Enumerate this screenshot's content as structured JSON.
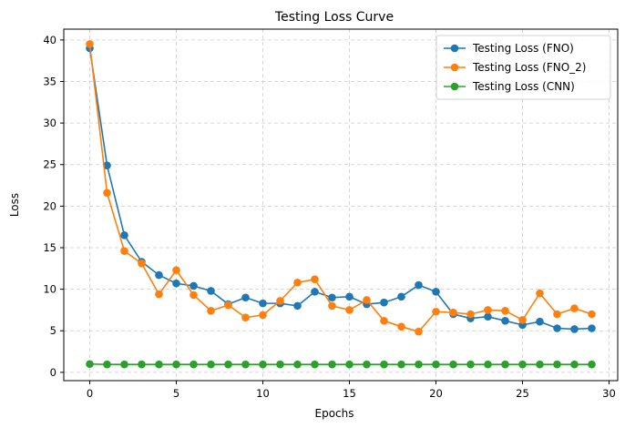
{
  "chart_data": {
    "type": "line",
    "title": "Testing Loss Curve",
    "xlabel": "Epochs",
    "ylabel": "Loss",
    "xlim": [
      -1.5,
      30.5
    ],
    "ylim": [
      -1.0,
      41.3
    ],
    "xticks": [
      0,
      5,
      10,
      15,
      20,
      25,
      30
    ],
    "yticks": [
      0,
      5,
      10,
      15,
      20,
      25,
      30,
      35,
      40
    ],
    "grid": true,
    "grid_style": "dashed",
    "legend_position": "top-right",
    "x": [
      0,
      1,
      2,
      3,
      4,
      5,
      6,
      7,
      8,
      9,
      10,
      11,
      12,
      13,
      14,
      15,
      16,
      17,
      18,
      19,
      20,
      21,
      22,
      23,
      24,
      25,
      26,
      27,
      28,
      29
    ],
    "series": [
      {
        "name": "Testing Loss (FNO)",
        "color": "#1f77b4",
        "values": [
          39.0,
          24.9,
          16.5,
          13.3,
          11.7,
          10.7,
          10.4,
          9.8,
          8.2,
          9.0,
          8.3,
          8.3,
          8.0,
          9.7,
          9.0,
          9.1,
          8.2,
          8.4,
          9.1,
          10.5,
          9.7,
          7.0,
          6.5,
          6.7,
          6.2,
          5.7,
          6.1,
          5.3,
          5.2,
          5.3
        ]
      },
      {
        "name": "Testing Loss (FNO_2)",
        "color": "#ff7f0e",
        "values": [
          39.5,
          21.6,
          14.6,
          13.1,
          9.4,
          12.3,
          9.3,
          7.4,
          8.1,
          6.6,
          6.9,
          8.6,
          10.8,
          11.2,
          8.0,
          7.5,
          8.7,
          6.2,
          5.5,
          4.9,
          7.3,
          7.2,
          7.0,
          7.5,
          7.4,
          6.3,
          9.5,
          7.0,
          7.7,
          7.0
        ]
      },
      {
        "name": "Testing Loss (CNN)",
        "color": "#2ca02c",
        "values": [
          1.0,
          0.95,
          0.95,
          0.95,
          0.95,
          0.95,
          0.95,
          0.95,
          0.95,
          0.95,
          0.95,
          0.95,
          0.95,
          0.95,
          0.95,
          0.95,
          0.95,
          0.95,
          0.95,
          0.95,
          0.95,
          0.95,
          0.95,
          0.95,
          0.95,
          0.95,
          0.95,
          0.95,
          0.95,
          0.95
        ]
      }
    ]
  }
}
